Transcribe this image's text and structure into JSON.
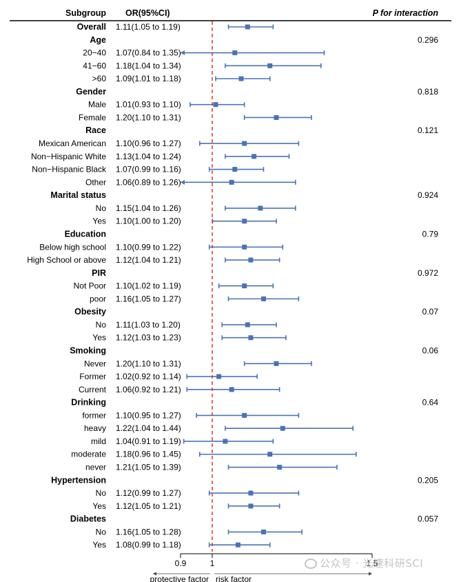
{
  "headers": {
    "subgroup": "Subgroup",
    "or": "OR(95%CI)",
    "p": "P for interaction"
  },
  "axis": {
    "ticks": [
      "0.9",
      "1",
      "1.5"
    ],
    "left_label": "protective factor",
    "right_label": "risk factor"
  },
  "watermark": {
    "text": "公众号 · 光速科研SCI"
  },
  "colors": {
    "marker": "#4a72b8",
    "reference_line": "#d9261c"
  },
  "chart_data": {
    "type": "forest",
    "xlim": [
      0.9,
      1.5
    ],
    "reference": 1,
    "rows": [
      {
        "label": "Overall",
        "group": true,
        "or_text": "1.11(1.05 to 1.19)",
        "or": 1.11,
        "lo": 1.05,
        "hi": 1.19,
        "p": ""
      },
      {
        "label": "Age",
        "group": true,
        "p": "0.296"
      },
      {
        "label": "20−40",
        "or_text": "1.07(0.84 to 1.35)",
        "or": 1.07,
        "lo": 0.84,
        "hi": 1.35
      },
      {
        "label": "41−60",
        "or_text": "1.18(1.04 to 1.34)",
        "or": 1.18,
        "lo": 1.04,
        "hi": 1.34
      },
      {
        "label": ">60",
        "or_text": "1.09(1.01 to 1.18)",
        "or": 1.09,
        "lo": 1.01,
        "hi": 1.18
      },
      {
        "label": "Gender",
        "group": true,
        "p": "0.818"
      },
      {
        "label": "Male",
        "or_text": "1.01(0.93 to 1.10)",
        "or": 1.01,
        "lo": 0.93,
        "hi": 1.1
      },
      {
        "label": "Female",
        "or_text": "1.20(1.10 to 1.31)",
        "or": 1.2,
        "lo": 1.1,
        "hi": 1.31
      },
      {
        "label": "Race",
        "group": true,
        "p": "0.121"
      },
      {
        "label": "Mexican American",
        "or_text": "1.10(0.96 to 1.27)",
        "or": 1.1,
        "lo": 0.96,
        "hi": 1.27
      },
      {
        "label": "Non−Hispanic White",
        "or_text": "1.13(1.04 to 1.24)",
        "or": 1.13,
        "lo": 1.04,
        "hi": 1.24
      },
      {
        "label": "Non−Hispanic Black",
        "or_text": "1.07(0.99 to 1.16)",
        "or": 1.07,
        "lo": 0.99,
        "hi": 1.16
      },
      {
        "label": "Other",
        "or_text": "1.06(0.89 to 1.26)",
        "or": 1.06,
        "lo": 0.89,
        "hi": 1.26
      },
      {
        "label": "Marital status",
        "group": true,
        "p": "0.924"
      },
      {
        "label": "No",
        "or_text": "1.15(1.04 to 1.26)",
        "or": 1.15,
        "lo": 1.04,
        "hi": 1.26
      },
      {
        "label": "Yes",
        "or_text": "1.10(1.00 to 1.20)",
        "or": 1.1,
        "lo": 1.0,
        "hi": 1.2
      },
      {
        "label": "Education",
        "group": true,
        "p": "0.79"
      },
      {
        "label": "Below high school",
        "or_text": "1.10(0.99 to 1.22)",
        "or": 1.1,
        "lo": 0.99,
        "hi": 1.22
      },
      {
        "label": "High School or above",
        "or_text": "1.12(1.04 to 1.21)",
        "or": 1.12,
        "lo": 1.04,
        "hi": 1.21
      },
      {
        "label": "PIR",
        "group": true,
        "p": "0.972"
      },
      {
        "label": "Not Poor",
        "or_text": "1.10(1.02 to 1.19)",
        "or": 1.1,
        "lo": 1.02,
        "hi": 1.19
      },
      {
        "label": "poor",
        "or_text": "1.16(1.05 to 1.27)",
        "or": 1.16,
        "lo": 1.05,
        "hi": 1.27
      },
      {
        "label": "Obesity",
        "group": true,
        "p": "0.07"
      },
      {
        "label": "No",
        "or_text": "1.11(1.03 to 1.20)",
        "or": 1.11,
        "lo": 1.03,
        "hi": 1.2
      },
      {
        "label": "Yes",
        "or_text": "1.12(1.03 to 1.23)",
        "or": 1.12,
        "lo": 1.03,
        "hi": 1.23
      },
      {
        "label": "Smoking",
        "group": true,
        "p": "0.06"
      },
      {
        "label": "Never",
        "or_text": "1.20(1.10 to 1.31)",
        "or": 1.2,
        "lo": 1.1,
        "hi": 1.31
      },
      {
        "label": "Former",
        "or_text": "1.02(0.92 to 1.14)",
        "or": 1.02,
        "lo": 0.92,
        "hi": 1.14
      },
      {
        "label": "Current",
        "or_text": "1.06(0.92 to 1.21)",
        "or": 1.06,
        "lo": 0.92,
        "hi": 1.21
      },
      {
        "label": "Drinking",
        "group": true,
        "p": "0.64"
      },
      {
        "label": "former",
        "or_text": "1.10(0.95 to 1.27)",
        "or": 1.1,
        "lo": 0.95,
        "hi": 1.27
      },
      {
        "label": "heavy",
        "or_text": "1.22(1.04 to 1.44)",
        "or": 1.22,
        "lo": 1.04,
        "hi": 1.44
      },
      {
        "label": "mild",
        "or_text": "1.04(0.91 to 1.19)",
        "or": 1.04,
        "lo": 0.91,
        "hi": 1.19
      },
      {
        "label": "moderate",
        "or_text": "1.18(0.96 to 1.45)",
        "or": 1.18,
        "lo": 0.96,
        "hi": 1.45
      },
      {
        "label": "never",
        "or_text": "1.21(1.05 to 1.39)",
        "or": 1.21,
        "lo": 1.05,
        "hi": 1.39
      },
      {
        "label": "Hypertension",
        "group": true,
        "p": "0.205"
      },
      {
        "label": "No",
        "or_text": "1.12(0.99 to 1.27)",
        "or": 1.12,
        "lo": 0.99,
        "hi": 1.27
      },
      {
        "label": "Yes",
        "or_text": "1.12(1.05 to 1.21)",
        "or": 1.12,
        "lo": 1.05,
        "hi": 1.21
      },
      {
        "label": "Diabetes",
        "group": true,
        "p": "0.057"
      },
      {
        "label": "No",
        "or_text": "1.16(1.05 to 1.28)",
        "or": 1.16,
        "lo": 1.05,
        "hi": 1.28
      },
      {
        "label": "Yes",
        "or_text": "1.08(0.99 to 1.18)",
        "or": 1.08,
        "lo": 0.99,
        "hi": 1.18
      }
    ]
  }
}
